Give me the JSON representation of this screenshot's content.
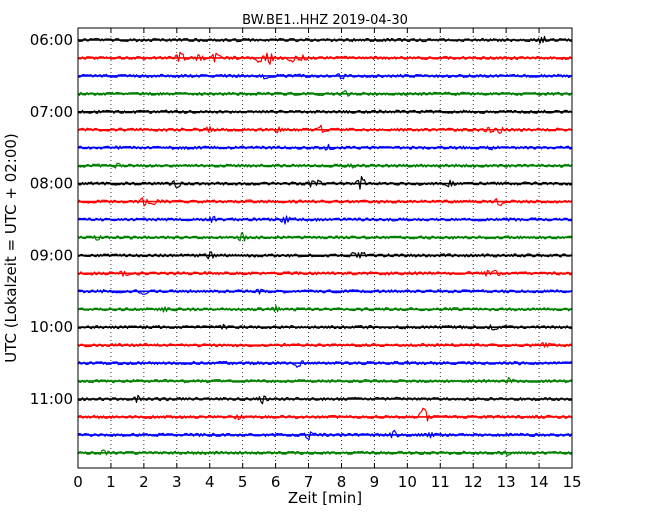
{
  "chart_data": {
    "type": "line",
    "title": "BW.BE1..HHZ 2019-04-30",
    "xlabel": "Zeit  [min]",
    "ylabel": "UTC (Lokalzeit = UTC + 02:00)",
    "xlim": [
      0,
      15
    ],
    "x_ticks": [
      "0",
      "1",
      "2",
      "3",
      "4",
      "5",
      "6",
      "7",
      "8",
      "9",
      "10",
      "11",
      "12",
      "13",
      "14",
      "15"
    ],
    "y_tick_labels": [
      "06:00",
      "07:00",
      "08:00",
      "09:00",
      "10:00",
      "11:00"
    ],
    "grid": true,
    "trace_interval_min": 15,
    "colors": [
      "#000000",
      "#ff0000",
      "#0000ff",
      "#008000"
    ],
    "series": [
      {
        "start": "06:00",
        "events": [
          [
            14.1,
            4
          ]
        ]
      },
      {
        "start": "06:15",
        "events": [
          [
            3.1,
            6
          ],
          [
            3.7,
            4
          ],
          [
            4.2,
            6
          ],
          [
            5.5,
            5
          ],
          [
            5.8,
            7
          ],
          [
            6.5,
            4
          ],
          [
            6.8,
            3
          ]
        ]
      },
      {
        "start": "06:30",
        "events": [
          [
            5.7,
            3
          ],
          [
            8.0,
            3
          ]
        ]
      },
      {
        "start": "06:45",
        "events": [
          [
            8.1,
            3
          ]
        ]
      },
      {
        "start": "07:00",
        "events": []
      },
      {
        "start": "07:15",
        "events": [
          [
            4.0,
            3
          ],
          [
            6.1,
            3
          ],
          [
            7.4,
            4
          ],
          [
            12.5,
            3
          ],
          [
            12.8,
            3
          ]
        ]
      },
      {
        "start": "07:30",
        "events": [
          [
            7.6,
            3
          ],
          [
            12.5,
            2
          ]
        ]
      },
      {
        "start": "07:45",
        "events": [
          [
            1.2,
            2
          ],
          [
            8.3,
            2
          ]
        ]
      },
      {
        "start": "08:00",
        "events": [
          [
            3.0,
            6
          ],
          [
            7.1,
            4
          ],
          [
            7.3,
            3
          ],
          [
            8.6,
            7
          ],
          [
            11.3,
            3
          ]
        ]
      },
      {
        "start": "08:15",
        "events": [
          [
            2.0,
            4
          ],
          [
            2.3,
            3
          ],
          [
            12.8,
            4
          ]
        ]
      },
      {
        "start": "08:30",
        "events": [
          [
            4.1,
            3
          ],
          [
            6.3,
            4
          ]
        ]
      },
      {
        "start": "08:45",
        "events": [
          [
            0.6,
            2
          ],
          [
            5.0,
            5
          ]
        ]
      },
      {
        "start": "09:00",
        "events": [
          [
            4.0,
            4
          ],
          [
            8.4,
            3
          ],
          [
            8.6,
            4
          ]
        ]
      },
      {
        "start": "09:15",
        "events": [
          [
            1.4,
            3
          ],
          [
            12.4,
            3
          ],
          [
            12.7,
            3
          ]
        ]
      },
      {
        "start": "09:30",
        "events": [
          [
            2.0,
            3
          ],
          [
            5.5,
            3
          ]
        ]
      },
      {
        "start": "09:45",
        "events": [
          [
            2.6,
            3
          ],
          [
            6.0,
            3
          ]
        ]
      },
      {
        "start": "10:00",
        "events": [
          [
            4.4,
            2
          ],
          [
            12.6,
            3
          ]
        ]
      },
      {
        "start": "10:15",
        "events": [
          [
            14.2,
            3
          ]
        ]
      },
      {
        "start": "10:30",
        "events": [
          [
            6.7,
            5
          ]
        ]
      },
      {
        "start": "10:45",
        "events": [
          [
            13.1,
            3
          ]
        ]
      },
      {
        "start": "11:00",
        "events": [
          [
            1.8,
            3
          ],
          [
            5.6,
            4
          ]
        ]
      },
      {
        "start": "11:15",
        "events": [
          [
            4.9,
            3
          ],
          [
            10.5,
            9
          ]
        ]
      },
      {
        "start": "11:30",
        "events": [
          [
            7.0,
            4
          ],
          [
            9.6,
            4
          ],
          [
            10.7,
            3
          ]
        ]
      },
      {
        "start": "11:45",
        "events": [
          [
            0.8,
            3
          ],
          [
            13.0,
            3
          ]
        ]
      }
    ]
  }
}
